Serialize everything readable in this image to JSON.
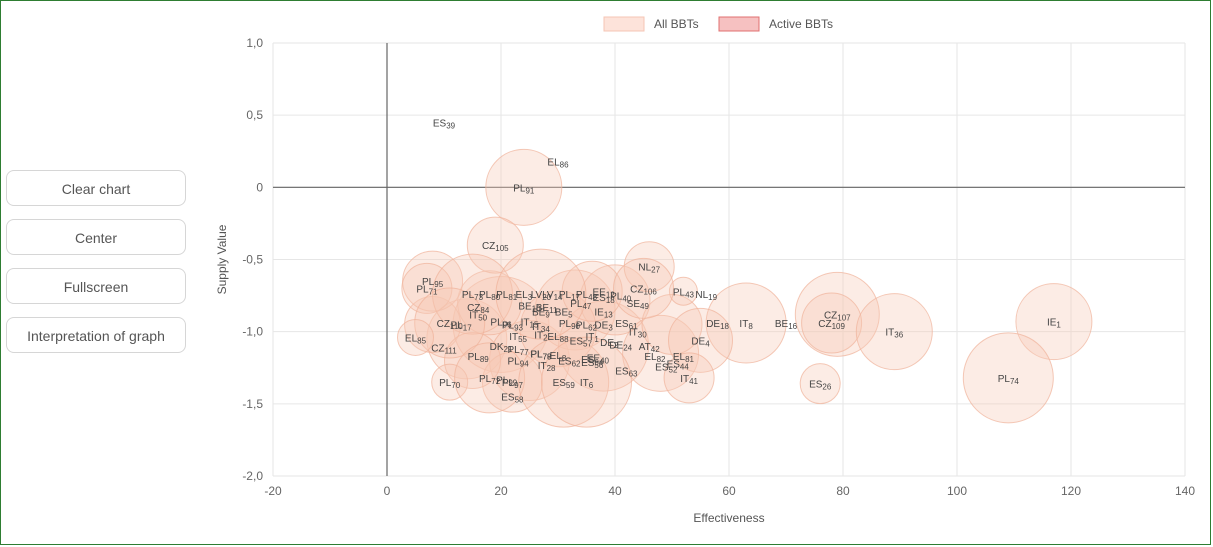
{
  "controls": {
    "clear_label": "Clear chart",
    "center_label": "Center",
    "fullscreen_label": "Fullscreen",
    "interpretation_label": "Interpretation of graph"
  },
  "colors": {
    "bubble_fill": "#f7c9b5",
    "bubble_stroke": "#f0b29a",
    "active_fill": "#f6c1c1",
    "active_stroke": "#e07070",
    "frame": "#2e7d32"
  },
  "chart_data": {
    "type": "scatter",
    "title": "",
    "xlabel": "Effectiveness",
    "ylabel": "Supply Value",
    "xlim": [
      -20,
      140
    ],
    "ylim": [
      -2.0,
      1.0
    ],
    "x_ticks": [
      "-20",
      "0",
      "20",
      "40",
      "60",
      "80",
      "100",
      "120",
      "140"
    ],
    "y_ticks": [
      "1,0",
      "0,5",
      "0",
      "-0,5",
      "-1,0",
      "-1,5",
      "-2,0"
    ],
    "grid": true,
    "legend_position": "top",
    "legend": [
      "All BBTs",
      "Active BBTs"
    ],
    "points": [
      {
        "label": "ES39",
        "x": 10,
        "y": 0.45,
        "r": 0
      },
      {
        "label": "EL86",
        "x": 30,
        "y": 0.18,
        "r": 0
      },
      {
        "label": "PL91",
        "x": 24,
        "y": 0.0,
        "r": 38
      },
      {
        "label": "CZ105",
        "x": 19,
        "y": -0.4,
        "r": 28
      },
      {
        "label": "NL27",
        "x": 46,
        "y": -0.55,
        "r": 25
      },
      {
        "label": "PL95",
        "x": 8,
        "y": -0.65,
        "r": 30
      },
      {
        "label": "PL71",
        "x": 7,
        "y": -0.7,
        "r": 25
      },
      {
        "label": "PL43",
        "x": 52,
        "y": -0.72,
        "r": 14
      },
      {
        "label": "NL19",
        "x": 56,
        "y": -0.74,
        "r": 0
      },
      {
        "label": "CZ106",
        "x": 45,
        "y": -0.7,
        "r": 30
      },
      {
        "label": "SE49",
        "x": 44,
        "y": -0.8,
        "r": 0
      },
      {
        "label": "BE10",
        "x": 25,
        "y": -0.82,
        "r": 0
      },
      {
        "label": "PL47",
        "x": 34,
        "y": -0.8,
        "r": 0
      },
      {
        "label": "IE13",
        "x": 38,
        "y": -0.86,
        "r": 0
      },
      {
        "label": "ES61",
        "x": 42,
        "y": -0.94,
        "r": 0
      },
      {
        "label": "PL73",
        "x": 15,
        "y": -0.74,
        "r": 40
      },
      {
        "label": "LV20",
        "x": 27,
        "y": -0.74,
        "r": 45
      },
      {
        "label": "CZ84",
        "x": 16,
        "y": -0.83,
        "r": 0
      },
      {
        "label": "IT50",
        "x": 16,
        "y": -0.88,
        "r": 0
      },
      {
        "label": "CZ110",
        "x": 11,
        "y": -0.94,
        "r": 35
      },
      {
        "label": "PL17",
        "x": 13,
        "y": -0.95,
        "r": 0
      },
      {
        "label": "EL88",
        "x": 30,
        "y": -1.03,
        "r": 0
      },
      {
        "label": "IT30",
        "x": 44,
        "y": -1.0,
        "r": 0
      },
      {
        "label": "DE18",
        "x": 58,
        "y": -0.94,
        "r": 0
      },
      {
        "label": "IT8",
        "x": 63,
        "y": -0.94,
        "r": 40
      },
      {
        "label": "BE16",
        "x": 70,
        "y": -0.94,
        "r": 0
      },
      {
        "label": "CZ107",
        "x": 79,
        "y": -0.88,
        "r": 42
      },
      {
        "label": "CZ109",
        "x": 78,
        "y": -0.94,
        "r": 30
      },
      {
        "label": "IT36",
        "x": 89,
        "y": -1.0,
        "r": 38
      },
      {
        "label": "IE1",
        "x": 117,
        "y": -0.93,
        "r": 38
      },
      {
        "label": "DE4",
        "x": 55,
        "y": -1.06,
        "r": 32
      },
      {
        "label": "DE24",
        "x": 41,
        "y": -1.09,
        "r": 0
      },
      {
        "label": "AT42",
        "x": 46,
        "y": -1.1,
        "r": 0
      },
      {
        "label": "EL85",
        "x": 5,
        "y": -1.04,
        "r": 18
      },
      {
        "label": "CZ111",
        "x": 10,
        "y": -1.11,
        "r": 0
      },
      {
        "label": "DK21",
        "x": 20,
        "y": -1.1,
        "r": 0
      },
      {
        "label": "PL77",
        "x": 23,
        "y": -1.12,
        "r": 0
      },
      {
        "label": "PL89",
        "x": 16,
        "y": -1.17,
        "r": 0
      },
      {
        "label": "PL94",
        "x": 23,
        "y": -1.2,
        "r": 0
      },
      {
        "label": "PL79",
        "x": 27,
        "y": -1.15,
        "r": 0
      },
      {
        "label": "IT28",
        "x": 28,
        "y": -1.23,
        "r": 0
      },
      {
        "label": "ES64",
        "x": 36,
        "y": -1.19,
        "r": 0
      },
      {
        "label": "EL82",
        "x": 47,
        "y": -1.17,
        "r": 0
      },
      {
        "label": "EL81",
        "x": 52,
        "y": -1.17,
        "r": 0
      },
      {
        "label": "ES44",
        "x": 51,
        "y": -1.22,
        "r": 0
      },
      {
        "label": "ES63",
        "x": 42,
        "y": -1.27,
        "r": 0
      },
      {
        "label": "IT41",
        "x": 53,
        "y": -1.32,
        "r": 25
      },
      {
        "label": "PL70",
        "x": 11,
        "y": -1.35,
        "r": 18
      },
      {
        "label": "PL72",
        "x": 18,
        "y": -1.32,
        "r": 35
      },
      {
        "label": "ES58",
        "x": 22,
        "y": -1.45,
        "r": 0
      },
      {
        "label": "ES59",
        "x": 31,
        "y": -1.35,
        "r": 45
      },
      {
        "label": "IT6",
        "x": 35,
        "y": -1.35,
        "r": 45
      },
      {
        "label": "ES26",
        "x": 76,
        "y": -1.36,
        "r": 20
      },
      {
        "label": "PL74",
        "x": 109,
        "y": -1.32,
        "r": 45
      }
    ],
    "extra_bubbles": [
      {
        "x": 14,
        "y": -1.05,
        "r": 40
      },
      {
        "x": 20,
        "y": -0.95,
        "r": 48
      },
      {
        "x": 25,
        "y": -1.2,
        "r": 40
      },
      {
        "x": 33,
        "y": -0.85,
        "r": 40
      },
      {
        "x": 38,
        "y": -1.1,
        "r": 45
      },
      {
        "x": 40,
        "y": -0.78,
        "r": 35
      },
      {
        "x": 48,
        "y": -1.15,
        "r": 38
      },
      {
        "x": 30,
        "y": -0.98,
        "r": 38
      },
      {
        "x": 18,
        "y": -0.8,
        "r": 32
      },
      {
        "x": 8,
        "y": -0.95,
        "r": 28
      },
      {
        "x": 36,
        "y": -0.72,
        "r": 30
      },
      {
        "x": 50,
        "y": -0.95,
        "r": 30
      },
      {
        "x": 22,
        "y": -1.35,
        "r": 30
      },
      {
        "x": 15,
        "y": -1.2,
        "r": 28
      }
    ],
    "dense_labels": [
      {
        "label": "PL80",
        "x": 18,
        "y": -0.74
      },
      {
        "label": "PL81",
        "x": 21,
        "y": -0.74
      },
      {
        "label": "EL3",
        "x": 24,
        "y": -0.74
      },
      {
        "label": "LV14",
        "x": 29,
        "y": -0.74
      },
      {
        "label": "PL17",
        "x": 32,
        "y": -0.74
      },
      {
        "label": "PL48",
        "x": 35,
        "y": -0.74
      },
      {
        "label": "EE12",
        "x": 38,
        "y": -0.72
      },
      {
        "label": "PL40",
        "x": 41,
        "y": -0.75
      },
      {
        "label": "ES18",
        "x": 38,
        "y": -0.76
      },
      {
        "label": "BE11",
        "x": 28,
        "y": -0.83
      },
      {
        "label": "BE5",
        "x": 31,
        "y": -0.86
      },
      {
        "label": "BE9",
        "x": 27,
        "y": -0.86
      },
      {
        "label": "PL96",
        "x": 20,
        "y": -0.93
      },
      {
        "label": "PL93",
        "x": 22,
        "y": -0.95
      },
      {
        "label": "IT15",
        "x": 25,
        "y": -0.93
      },
      {
        "label": "IT34",
        "x": 27,
        "y": -0.96
      },
      {
        "label": "PL90",
        "x": 32,
        "y": -0.94
      },
      {
        "label": "PL62",
        "x": 35,
        "y": -0.95
      },
      {
        "label": "DE3",
        "x": 38,
        "y": -0.95
      },
      {
        "label": "IT55",
        "x": 23,
        "y": -1.03
      },
      {
        "label": "IT2",
        "x": 27,
        "y": -1.02
      },
      {
        "label": "ES57",
        "x": 34,
        "y": -1.06
      },
      {
        "label": "IT1",
        "x": 36,
        "y": -1.03
      },
      {
        "label": "DE2",
        "x": 39,
        "y": -1.07
      },
      {
        "label": "EL8",
        "x": 30,
        "y": -1.16
      },
      {
        "label": "ES62",
        "x": 32,
        "y": -1.2
      },
      {
        "label": "EE40",
        "x": 37,
        "y": -1.18
      },
      {
        "label": "ES56",
        "x": 36,
        "y": -1.21
      },
      {
        "label": "ES52",
        "x": 49,
        "y": -1.24
      },
      {
        "label": "PL97",
        "x": 22,
        "y": -1.35
      },
      {
        "label": "PL99",
        "x": 21,
        "y": -1.33
      },
      {
        "label": "PL78",
        "x": 27,
        "y": -1.15
      }
    ]
  }
}
